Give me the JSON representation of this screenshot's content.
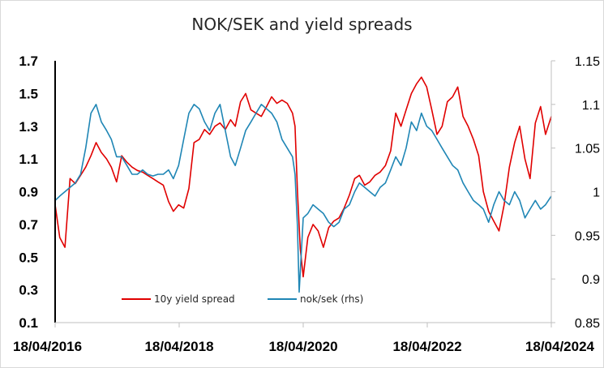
{
  "chart_data": {
    "type": "line",
    "title": "NOK/SEK and yield spreads",
    "x_ticks": [
      "18/04/2016",
      "18/04/2018",
      "18/04/2020",
      "18/04/2022",
      "18/04/2024"
    ],
    "y_left": {
      "ylim": [
        0.1,
        1.7
      ],
      "ticks": [
        "0.1",
        "0.3",
        "0.5",
        "0.7",
        "0.9",
        "1.1",
        "1.3",
        "1.5",
        "1.7"
      ]
    },
    "y_right": {
      "ylim": [
        0.85,
        1.15
      ],
      "ticks": [
        "0.85",
        "0.9",
        "0.95",
        "1",
        "1.05",
        "1.1",
        "1.15"
      ]
    },
    "grid": false,
    "legend_position": "bottom-center",
    "series": [
      {
        "name": "10y yield spread",
        "axis": "left",
        "color": "#e00000",
        "points": [
          [
            "2016-04-18",
            0.82
          ],
          [
            "2016-05-15",
            0.62
          ],
          [
            "2016-06-15",
            0.56
          ],
          [
            "2016-07-15",
            0.98
          ],
          [
            "2016-08-15",
            0.95
          ],
          [
            "2016-09-15",
            1.0
          ],
          [
            "2016-10-15",
            1.05
          ],
          [
            "2016-11-15",
            1.12
          ],
          [
            "2016-12-15",
            1.2
          ],
          [
            "2017-01-15",
            1.14
          ],
          [
            "2017-02-15",
            1.1
          ],
          [
            "2017-03-15",
            1.05
          ],
          [
            "2017-04-15",
            0.96
          ],
          [
            "2017-05-15",
            1.12
          ],
          [
            "2017-06-15",
            1.08
          ],
          [
            "2017-07-15",
            1.05
          ],
          [
            "2017-08-15",
            1.03
          ],
          [
            "2017-09-15",
            1.02
          ],
          [
            "2017-10-15",
            1.0
          ],
          [
            "2017-11-15",
            0.98
          ],
          [
            "2017-12-15",
            0.96
          ],
          [
            "2018-01-15",
            0.94
          ],
          [
            "2018-02-15",
            0.84
          ],
          [
            "2018-03-15",
            0.78
          ],
          [
            "2018-04-15",
            0.82
          ],
          [
            "2018-05-15",
            0.8
          ],
          [
            "2018-06-15",
            0.92
          ],
          [
            "2018-07-15",
            1.2
          ],
          [
            "2018-08-15",
            1.22
          ],
          [
            "2018-09-15",
            1.28
          ],
          [
            "2018-10-15",
            1.25
          ],
          [
            "2018-11-15",
            1.3
          ],
          [
            "2018-12-15",
            1.32
          ],
          [
            "2019-01-15",
            1.28
          ],
          [
            "2019-02-15",
            1.34
          ],
          [
            "2019-03-15",
            1.3
          ],
          [
            "2019-04-15",
            1.45
          ],
          [
            "2019-05-15",
            1.5
          ],
          [
            "2019-06-15",
            1.4
          ],
          [
            "2019-07-15",
            1.38
          ],
          [
            "2019-08-15",
            1.36
          ],
          [
            "2019-09-15",
            1.42
          ],
          [
            "2019-10-15",
            1.48
          ],
          [
            "2019-11-15",
            1.44
          ],
          [
            "2019-12-15",
            1.46
          ],
          [
            "2020-01-15",
            1.44
          ],
          [
            "2020-02-15",
            1.38
          ],
          [
            "2020-03-01",
            1.3
          ],
          [
            "2020-03-15",
            0.9
          ],
          [
            "2020-04-01",
            0.55
          ],
          [
            "2020-04-18",
            0.38
          ],
          [
            "2020-05-15",
            0.62
          ],
          [
            "2020-06-15",
            0.7
          ],
          [
            "2020-07-15",
            0.66
          ],
          [
            "2020-08-15",
            0.56
          ],
          [
            "2020-09-15",
            0.68
          ],
          [
            "2020-10-15",
            0.72
          ],
          [
            "2020-11-15",
            0.74
          ],
          [
            "2020-12-15",
            0.8
          ],
          [
            "2021-01-15",
            0.88
          ],
          [
            "2021-02-15",
            0.98
          ],
          [
            "2021-03-15",
            1.0
          ],
          [
            "2021-04-15",
            0.94
          ],
          [
            "2021-05-15",
            0.96
          ],
          [
            "2021-06-15",
            1.0
          ],
          [
            "2021-07-15",
            1.02
          ],
          [
            "2021-08-15",
            1.06
          ],
          [
            "2021-09-15",
            1.15
          ],
          [
            "2021-10-15",
            1.38
          ],
          [
            "2021-11-15",
            1.3
          ],
          [
            "2021-12-15",
            1.4
          ],
          [
            "2022-01-15",
            1.5
          ],
          [
            "2022-02-15",
            1.56
          ],
          [
            "2022-03-15",
            1.6
          ],
          [
            "2022-04-15",
            1.54
          ],
          [
            "2022-05-15",
            1.4
          ],
          [
            "2022-06-15",
            1.25
          ],
          [
            "2022-07-15",
            1.3
          ],
          [
            "2022-08-15",
            1.45
          ],
          [
            "2022-09-15",
            1.48
          ],
          [
            "2022-10-15",
            1.54
          ],
          [
            "2022-11-15",
            1.36
          ],
          [
            "2022-12-15",
            1.3
          ],
          [
            "2023-01-15",
            1.22
          ],
          [
            "2023-02-15",
            1.12
          ],
          [
            "2023-03-15",
            0.9
          ],
          [
            "2023-04-15",
            0.78
          ],
          [
            "2023-05-15",
            0.72
          ],
          [
            "2023-06-15",
            0.66
          ],
          [
            "2023-07-15",
            0.82
          ],
          [
            "2023-08-15",
            1.05
          ],
          [
            "2023-09-15",
            1.2
          ],
          [
            "2023-10-15",
            1.3
          ],
          [
            "2023-11-15",
            1.1
          ],
          [
            "2023-12-15",
            0.98
          ],
          [
            "2024-01-15",
            1.32
          ],
          [
            "2024-02-15",
            1.42
          ],
          [
            "2024-03-15",
            1.25
          ],
          [
            "2024-04-18",
            1.36
          ]
        ]
      },
      {
        "name": "nok/sek (rhs)",
        "axis": "right",
        "color": "#1f86b5",
        "points": [
          [
            "2016-04-18",
            0.99
          ],
          [
            "2016-05-15",
            0.995
          ],
          [
            "2016-06-15",
            1.0
          ],
          [
            "2016-07-15",
            1.005
          ],
          [
            "2016-08-15",
            1.01
          ],
          [
            "2016-09-15",
            1.02
          ],
          [
            "2016-10-15",
            1.05
          ],
          [
            "2016-11-15",
            1.09
          ],
          [
            "2016-12-15",
            1.1
          ],
          [
            "2017-01-15",
            1.08
          ],
          [
            "2017-02-15",
            1.07
          ],
          [
            "2017-03-15",
            1.06
          ],
          [
            "2017-04-15",
            1.04
          ],
          [
            "2017-05-15",
            1.04
          ],
          [
            "2017-06-15",
            1.03
          ],
          [
            "2017-07-15",
            1.02
          ],
          [
            "2017-08-15",
            1.02
          ],
          [
            "2017-09-15",
            1.025
          ],
          [
            "2017-10-15",
            1.02
          ],
          [
            "2017-11-15",
            1.018
          ],
          [
            "2017-12-15",
            1.02
          ],
          [
            "2018-01-15",
            1.02
          ],
          [
            "2018-02-15",
            1.025
          ],
          [
            "2018-03-15",
            1.015
          ],
          [
            "2018-04-15",
            1.03
          ],
          [
            "2018-05-15",
            1.06
          ],
          [
            "2018-06-15",
            1.09
          ],
          [
            "2018-07-15",
            1.1
          ],
          [
            "2018-08-15",
            1.095
          ],
          [
            "2018-09-15",
            1.08
          ],
          [
            "2018-10-15",
            1.07
          ],
          [
            "2018-11-15",
            1.09
          ],
          [
            "2018-12-15",
            1.1
          ],
          [
            "2019-01-15",
            1.07
          ],
          [
            "2019-02-15",
            1.04
          ],
          [
            "2019-03-15",
            1.03
          ],
          [
            "2019-04-15",
            1.05
          ],
          [
            "2019-05-15",
            1.07
          ],
          [
            "2019-06-15",
            1.08
          ],
          [
            "2019-07-15",
            1.09
          ],
          [
            "2019-08-15",
            1.1
          ],
          [
            "2019-09-15",
            1.095
          ],
          [
            "2019-10-15",
            1.09
          ],
          [
            "2019-11-15",
            1.08
          ],
          [
            "2019-12-15",
            1.06
          ],
          [
            "2020-01-15",
            1.05
          ],
          [
            "2020-02-15",
            1.04
          ],
          [
            "2020-03-01",
            1.02
          ],
          [
            "2020-03-15",
            0.96
          ],
          [
            "2020-03-25",
            0.885
          ],
          [
            "2020-04-18",
            0.97
          ],
          [
            "2020-05-15",
            0.975
          ],
          [
            "2020-06-15",
            0.985
          ],
          [
            "2020-07-15",
            0.98
          ],
          [
            "2020-08-15",
            0.975
          ],
          [
            "2020-09-15",
            0.965
          ],
          [
            "2020-10-15",
            0.96
          ],
          [
            "2020-11-15",
            0.965
          ],
          [
            "2020-12-15",
            0.98
          ],
          [
            "2021-01-15",
            0.985
          ],
          [
            "2021-02-15",
            1.0
          ],
          [
            "2021-03-15",
            1.01
          ],
          [
            "2021-04-15",
            1.005
          ],
          [
            "2021-05-15",
            1.0
          ],
          [
            "2021-06-15",
            0.995
          ],
          [
            "2021-07-15",
            1.005
          ],
          [
            "2021-08-15",
            1.01
          ],
          [
            "2021-09-15",
            1.025
          ],
          [
            "2021-10-15",
            1.04
          ],
          [
            "2021-11-15",
            1.03
          ],
          [
            "2021-12-15",
            1.05
          ],
          [
            "2022-01-15",
            1.08
          ],
          [
            "2022-02-15",
            1.07
          ],
          [
            "2022-03-15",
            1.09
          ],
          [
            "2022-04-15",
            1.075
          ],
          [
            "2022-05-15",
            1.07
          ],
          [
            "2022-06-15",
            1.06
          ],
          [
            "2022-07-15",
            1.05
          ],
          [
            "2022-08-15",
            1.04
          ],
          [
            "2022-09-15",
            1.03
          ],
          [
            "2022-10-15",
            1.025
          ],
          [
            "2022-11-15",
            1.01
          ],
          [
            "2022-12-15",
            1.0
          ],
          [
            "2023-01-15",
            0.99
          ],
          [
            "2023-02-15",
            0.985
          ],
          [
            "2023-03-15",
            0.98
          ],
          [
            "2023-04-15",
            0.965
          ],
          [
            "2023-05-15",
            0.985
          ],
          [
            "2023-06-15",
            1.0
          ],
          [
            "2023-07-15",
            0.99
          ],
          [
            "2023-08-15",
            0.985
          ],
          [
            "2023-09-15",
            1.0
          ],
          [
            "2023-10-15",
            0.99
          ],
          [
            "2023-11-15",
            0.97
          ],
          [
            "2023-12-15",
            0.98
          ],
          [
            "2024-01-15",
            0.99
          ],
          [
            "2024-02-15",
            0.98
          ],
          [
            "2024-03-15",
            0.985
          ],
          [
            "2024-04-18",
            0.995
          ]
        ]
      }
    ]
  }
}
